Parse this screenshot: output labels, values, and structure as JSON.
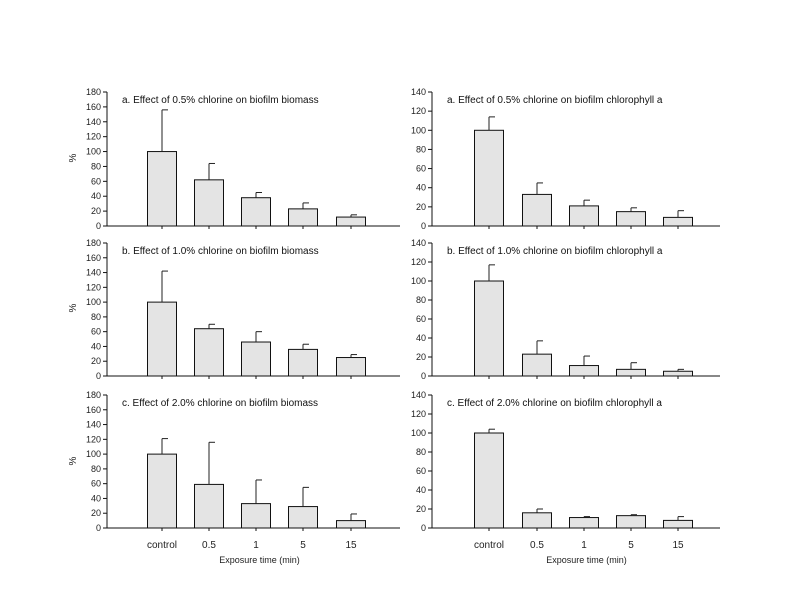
{
  "chart_data": [
    {
      "type": "bar",
      "title": "a. Effect of 0.5% chlorine on biofilm biomass",
      "ylabel": "%",
      "ylim": [
        0,
        180
      ],
      "yticks": [
        0,
        20,
        40,
        60,
        80,
        100,
        120,
        140,
        160,
        180
      ],
      "categories": [
        "control",
        "0.5",
        "1",
        "5",
        "15"
      ],
      "values": [
        100,
        62,
        38,
        23,
        12
      ],
      "error": [
        56,
        22,
        7,
        8,
        3
      ]
    },
    {
      "type": "bar",
      "title": "a. Effect of 0.5% chlorine on biofilm chlorophyll a",
      "ylabel": "",
      "ylim": [
        0,
        140
      ],
      "yticks": [
        0,
        20,
        40,
        60,
        80,
        100,
        120,
        140
      ],
      "categories": [
        "control",
        "0.5",
        "1",
        "5",
        "15"
      ],
      "values": [
        100,
        33,
        21,
        15,
        9
      ],
      "error": [
        14,
        12,
        6,
        4,
        7
      ]
    },
    {
      "type": "bar",
      "title": "b. Effect of 1.0% chlorine on biofilm biomass",
      "ylabel": "%",
      "ylim": [
        0,
        180
      ],
      "yticks": [
        0,
        20,
        40,
        60,
        80,
        100,
        120,
        140,
        160,
        180
      ],
      "categories": [
        "control",
        "0.5",
        "1",
        "5",
        "15"
      ],
      "values": [
        100,
        64,
        46,
        36,
        25
      ],
      "error": [
        42,
        6,
        14,
        7,
        4
      ]
    },
    {
      "type": "bar",
      "title": "b. Effect of 1.0% chlorine on biofilm chlorophyll a",
      "ylabel": "",
      "ylim": [
        0,
        140
      ],
      "yticks": [
        0,
        20,
        40,
        60,
        80,
        100,
        120,
        140
      ],
      "categories": [
        "control",
        "0.5",
        "1",
        "5",
        "15"
      ],
      "values": [
        100,
        23,
        11,
        7,
        5
      ],
      "error": [
        17,
        14,
        10,
        7,
        2
      ]
    },
    {
      "type": "bar",
      "title": "c. Effect of 2.0% chlorine on biofilm biomass",
      "ylabel": "%",
      "ylim": [
        0,
        180
      ],
      "yticks": [
        0,
        20,
        40,
        60,
        80,
        100,
        120,
        140,
        160,
        180
      ],
      "categories": [
        "control",
        "0.5",
        "1",
        "5",
        "15"
      ],
      "values": [
        100,
        59,
        33,
        29,
        10
      ],
      "error": [
        21,
        57,
        32,
        26,
        9
      ],
      "xlabel": "Exposure time (min)"
    },
    {
      "type": "bar",
      "title": "c. Effect of 2.0% chlorine on biofilm chlorophyll a",
      "ylabel": "",
      "ylim": [
        0,
        140
      ],
      "yticks": [
        0,
        20,
        40,
        60,
        80,
        100,
        120,
        140
      ],
      "categories": [
        "control",
        "0.5",
        "1",
        "5",
        "15"
      ],
      "values": [
        100,
        16,
        11,
        13,
        8
      ],
      "error": [
        4,
        4,
        1,
        1,
        4
      ],
      "xlabel": "Exposure time (min)"
    }
  ]
}
